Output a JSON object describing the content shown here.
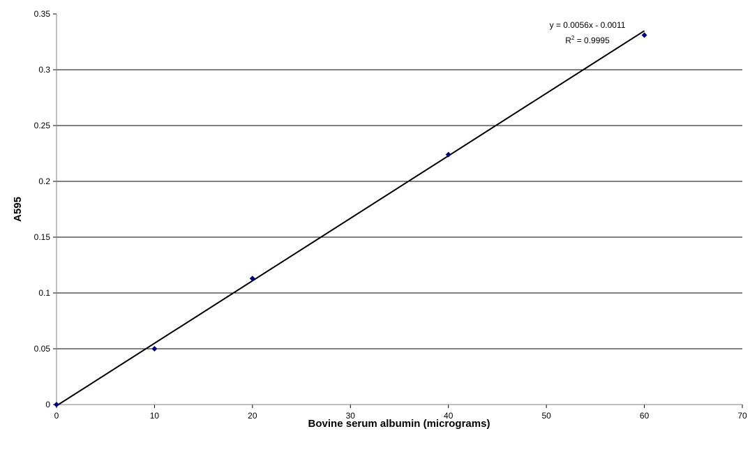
{
  "chart_data": {
    "type": "scatter",
    "x_label": "Bovine serum albumin (micrograms)",
    "y_label": "A595",
    "series": [
      {
        "name": "A595",
        "color": "#000080",
        "x": [
          0,
          10,
          20,
          40,
          60
        ],
        "values": [
          0,
          0.05,
          0.113,
          0.224,
          0.331
        ]
      }
    ],
    "trendline": {
      "slope": 0.0056,
      "intercept": -0.0011,
      "x_range": [
        0,
        60
      ],
      "color": "#000000",
      "equation": "y = 0.0056x - 0.0011",
      "r2_prefix": "R",
      "r2_exponent": "2",
      "r2_suffix": " = 0.9995"
    },
    "xlim": [
      0,
      70
    ],
    "xticks": [
      0,
      10,
      20,
      30,
      40,
      50,
      60,
      70
    ],
    "ylim": [
      0,
      0.35
    ],
    "yticks": [
      0,
      0.05,
      0.1,
      0.15,
      0.2,
      0.25,
      0.3,
      0.35
    ],
    "grid": true
  }
}
